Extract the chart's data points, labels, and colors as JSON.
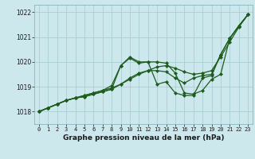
{
  "title": "Graphe pression niveau de la mer (hPa)",
  "background_color": "#cce8ed",
  "grid_color": "#aacdd4",
  "line_color": "#1e5c1e",
  "xlim": [
    -0.5,
    23.5
  ],
  "ylim": [
    1017.5,
    1022.3
  ],
  "yticks": [
    1018,
    1019,
    1020,
    1021,
    1022
  ],
  "xticks": [
    0,
    1,
    2,
    3,
    4,
    5,
    6,
    7,
    8,
    9,
    10,
    11,
    12,
    13,
    14,
    15,
    16,
    17,
    18,
    19,
    20,
    21,
    22,
    23
  ],
  "series": [
    [
      1018.0,
      1018.15,
      1018.3,
      1018.45,
      1018.55,
      1018.65,
      1018.75,
      1018.85,
      1018.95,
      1019.1,
      1019.3,
      1019.5,
      1019.65,
      1019.8,
      1019.85,
      1019.75,
      1019.6,
      1019.5,
      1019.55,
      1019.65,
      1020.2,
      1020.8,
      1021.4,
      1021.9
    ],
    [
      1018.0,
      1018.15,
      1018.3,
      1018.45,
      1018.55,
      1018.65,
      1018.75,
      1018.85,
      1019.05,
      1019.85,
      1020.2,
      1020.0,
      1020.0,
      1020.0,
      1019.95,
      1019.55,
      1018.75,
      1018.7,
      1018.85,
      1019.3,
      1019.5,
      1020.95,
      1021.45,
      1021.9
    ],
    [
      1018.0,
      1018.15,
      1018.3,
      1018.45,
      1018.55,
      1018.6,
      1018.7,
      1018.8,
      1018.9,
      1019.85,
      1020.15,
      1019.95,
      1020.0,
      1019.1,
      1019.2,
      1018.75,
      1018.65,
      1018.65,
      1019.35,
      1019.45,
      1020.3,
      1020.95,
      1021.45,
      1021.9
    ],
    [
      1018.0,
      1018.15,
      1018.3,
      1018.45,
      1018.55,
      1018.6,
      1018.7,
      1018.8,
      1018.9,
      1019.1,
      1019.35,
      1019.55,
      1019.65,
      1019.65,
      1019.6,
      1019.35,
      1019.15,
      1019.35,
      1019.45,
      1019.5,
      1020.3,
      1020.95,
      1021.45,
      1021.9
    ]
  ]
}
